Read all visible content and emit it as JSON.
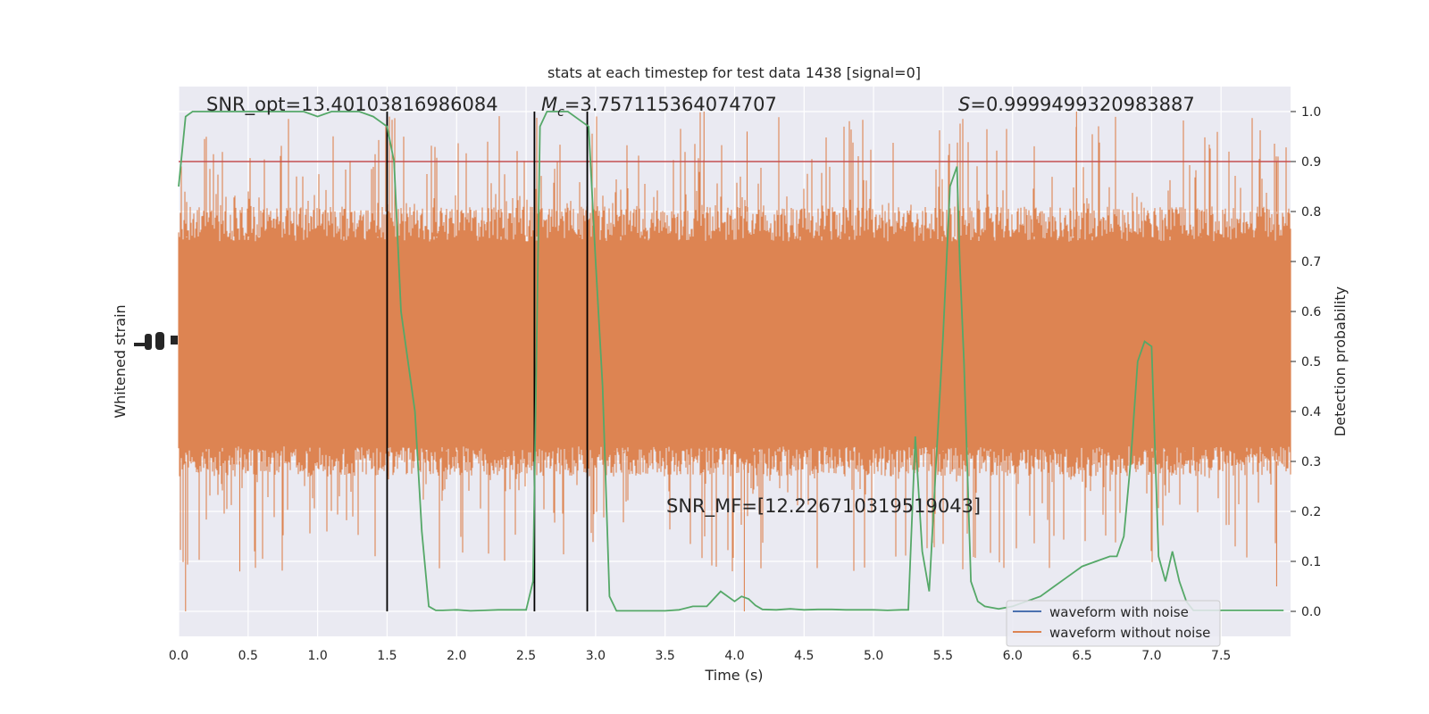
{
  "chart_data": {
    "type": "line",
    "title": "stats at each timestep for test data 1438 [signal=0]",
    "xlabel": "Time (s)",
    "ylabel_left": "Whitened strain",
    "ylabel_right": "Detection probability",
    "xlim": [
      0.0,
      8.0
    ],
    "ylim_right": [
      -0.05,
      1.05
    ],
    "x_ticks": [
      "0.0",
      "0.5",
      "1.0",
      "1.5",
      "2.0",
      "2.5",
      "3.0",
      "3.5",
      "4.0",
      "4.5",
      "5.0",
      "5.5",
      "6.0",
      "6.5",
      "7.0",
      "7.5"
    ],
    "y_ticks_right": [
      "0.0",
      "0.1",
      "0.2",
      "0.3",
      "0.4",
      "0.5",
      "0.6",
      "0.7",
      "0.8",
      "0.9",
      "1.0"
    ],
    "annotations": {
      "snr_opt": "SNR_opt=13.40103816986084",
      "mc_symbol": "M",
      "mc_sub": "c",
      "mc_value": "=3.757115364074707",
      "s_symbol": "S",
      "s_value": "=0.9999499320983887",
      "snr_mf": "SNR_MF=[12.226710319519043]"
    },
    "threshold": 0.9,
    "vlines": [
      1.5,
      2.56,
      2.94
    ],
    "legend": {
      "position": "lower-right",
      "entries": [
        "waveform with noise",
        "waveform without noise"
      ]
    },
    "series": [
      {
        "name": "detection probability",
        "t": [
          0.0,
          0.05,
          0.1,
          0.2,
          0.3,
          0.4,
          0.5,
          0.6,
          0.7,
          0.8,
          0.9,
          1.0,
          1.1,
          1.2,
          1.3,
          1.4,
          1.45,
          1.5,
          1.55,
          1.6,
          1.7,
          1.75,
          1.8,
          1.85,
          1.9,
          2.0,
          2.1,
          2.2,
          2.3,
          2.4,
          2.5,
          2.55,
          2.6,
          2.65,
          2.7,
          2.8,
          2.9,
          2.95,
          3.0,
          3.05,
          3.1,
          3.15,
          3.2,
          3.4,
          3.5,
          3.6,
          3.7,
          3.8,
          3.9,
          4.0,
          4.05,
          4.1,
          4.15,
          4.2,
          4.3,
          4.4,
          4.5,
          4.6,
          4.7,
          4.8,
          4.9,
          5.0,
          5.1,
          5.2,
          5.25,
          5.3,
          5.35,
          5.4,
          5.45,
          5.5,
          5.55,
          5.6,
          5.62,
          5.65,
          5.7,
          5.75,
          5.8,
          5.9,
          6.0,
          6.1,
          6.2,
          6.3,
          6.4,
          6.5,
          6.6,
          6.7,
          6.75,
          6.8,
          6.85,
          6.9,
          6.95,
          7.0,
          7.05,
          7.1,
          7.15,
          7.2,
          7.25,
          7.3,
          7.4,
          7.5,
          7.6,
          7.7,
          7.8,
          7.9,
          7.95
        ],
        "p": [
          0.85,
          0.99,
          1.0,
          1.0,
          1.0,
          1.0,
          1.0,
          1.0,
          1.0,
          1.0,
          1.0,
          0.99,
          1.0,
          1.0,
          1.0,
          0.99,
          0.98,
          0.97,
          0.9,
          0.6,
          0.4,
          0.16,
          0.01,
          0.002,
          0.002,
          0.003,
          0.001,
          0.002,
          0.003,
          0.003,
          0.003,
          0.06,
          0.97,
          1.0,
          1.0,
          1.0,
          0.98,
          0.97,
          0.7,
          0.45,
          0.03,
          0.001,
          0.001,
          0.001,
          0.001,
          0.003,
          0.01,
          0.01,
          0.04,
          0.02,
          0.03,
          0.025,
          0.012,
          0.004,
          0.003,
          0.005,
          0.003,
          0.004,
          0.004,
          0.003,
          0.003,
          0.003,
          0.002,
          0.003,
          0.003,
          0.35,
          0.12,
          0.04,
          0.3,
          0.55,
          0.85,
          0.89,
          0.7,
          0.5,
          0.06,
          0.02,
          0.01,
          0.005,
          0.01,
          0.02,
          0.03,
          0.05,
          0.07,
          0.09,
          0.1,
          0.11,
          0.11,
          0.15,
          0.3,
          0.5,
          0.54,
          0.53,
          0.11,
          0.06,
          0.12,
          0.06,
          0.02,
          0.002,
          0.002,
          0.002,
          0.002,
          0.002,
          0.002,
          0.002,
          0.002
        ]
      },
      {
        "name": "waveform without noise",
        "description_values": "dense whitened strain noise, filled band roughly 0.27 to 0.8 on the right axis with spikes up to 1.0 and down to 0.0"
      }
    ],
    "colors": {
      "background": "#eaeaf2",
      "grid": "#ffffff",
      "noise": "#dd8452",
      "probability": "#55a868",
      "threshold": "#c44e52",
      "vline": "#000000",
      "legend_noise": "#4c72b0"
    }
  }
}
